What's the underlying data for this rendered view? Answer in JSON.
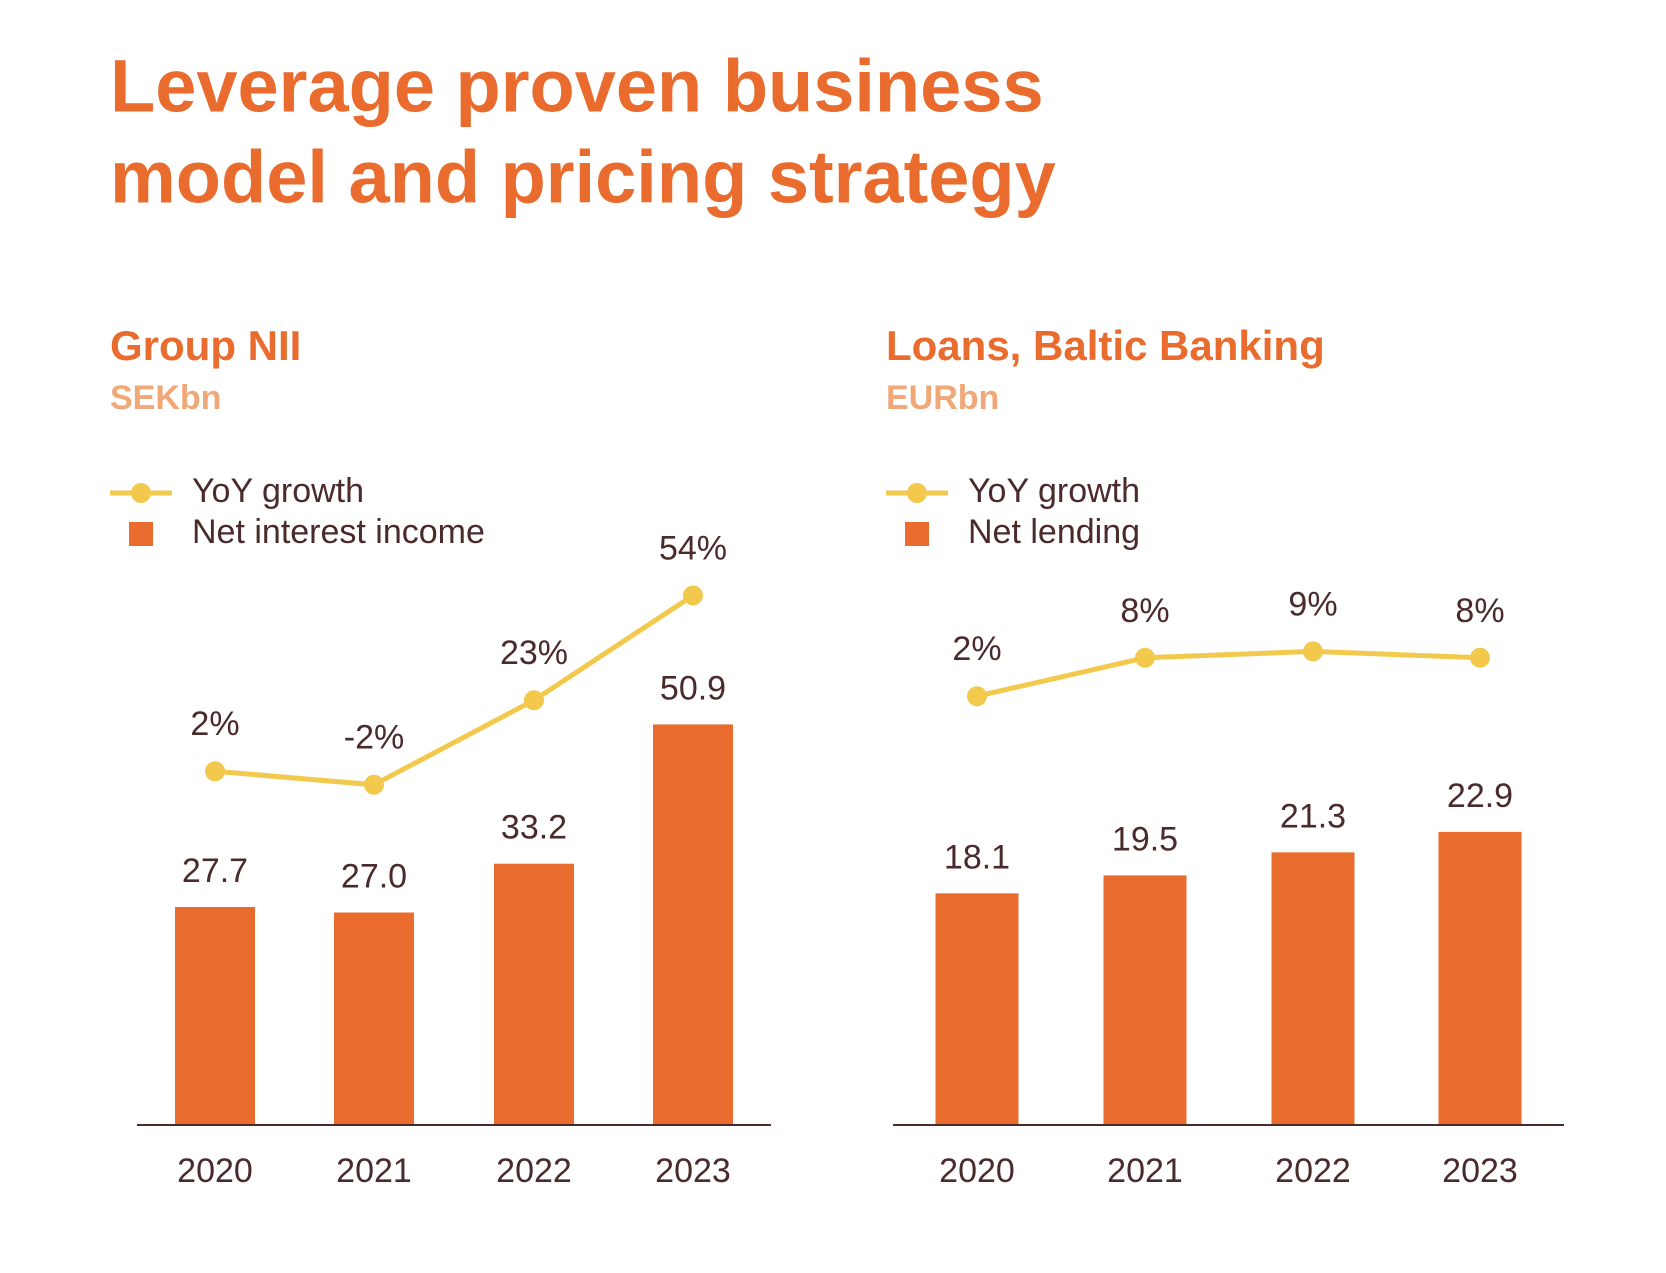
{
  "title": [
    "Leverage proven business",
    "model and pricing strategy"
  ],
  "chart_data": [
    {
      "type": "combo",
      "title": "Group NII",
      "subtitle": "SEKbn",
      "categories": [
        "2020",
        "2021",
        "2022",
        "2023"
      ],
      "series": [
        {
          "name": "YoY growth",
          "type": "line",
          "color": "#f2c94c",
          "values": [
            2,
            -2,
            23,
            54
          ],
          "value_labels": [
            "2%",
            "-2%",
            "23%",
            "54%"
          ]
        },
        {
          "name": "Net interest income",
          "type": "bar",
          "color": "#e96b2d",
          "values": [
            27.7,
            27.0,
            33.2,
            50.9
          ],
          "value_labels": [
            "27.7",
            "27.0",
            "33.2",
            "50.9"
          ]
        }
      ]
    },
    {
      "type": "combo",
      "title": "Loans, Baltic Banking",
      "subtitle": "EURbn",
      "categories": [
        "2020",
        "2021",
        "2022",
        "2023"
      ],
      "series": [
        {
          "name": "YoY growth",
          "type": "line",
          "color": "#f2c94c",
          "values": [
            2,
            8,
            9,
            8
          ],
          "value_labels": [
            "2%",
            "8%",
            "9%",
            "8%"
          ]
        },
        {
          "name": "Net lending",
          "type": "bar",
          "color": "#e96b2d",
          "values": [
            18.1,
            19.5,
            21.3,
            22.9
          ],
          "value_labels": [
            "18.1",
            "19.5",
            "21.3",
            "22.9"
          ]
        }
      ]
    }
  ]
}
